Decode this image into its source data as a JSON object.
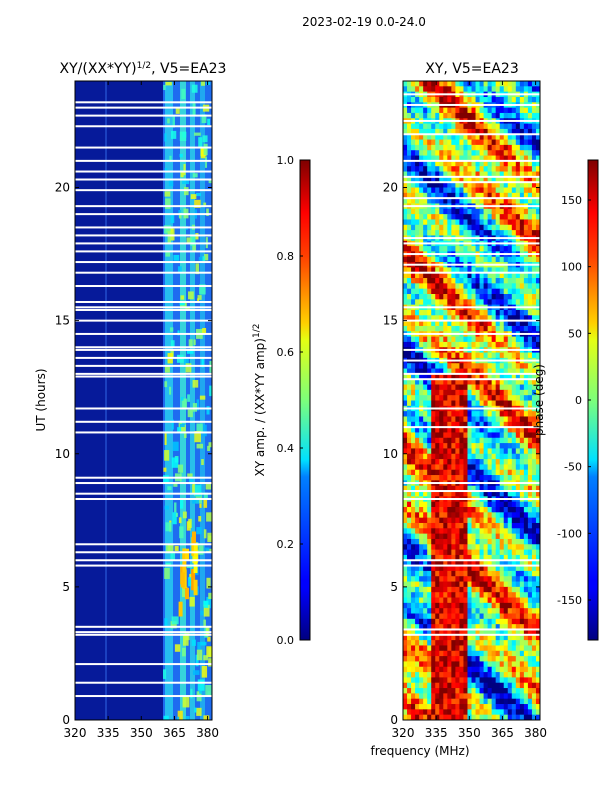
{
  "suptitle": "2023-02-19 0.0-24.0",
  "shared_xlabel": "frequency (MHz)",
  "chart_data": [
    {
      "type": "heatmap",
      "title_main": "XY/(XX*YY)",
      "title_exp": "1/2",
      "title_suffix": ", V5=EA23",
      "ylabel": "UT (hours)",
      "xlim": [
        320,
        382
      ],
      "ylim": [
        0,
        24
      ],
      "xticks": [
        320,
        335,
        350,
        365,
        380
      ],
      "yticks": [
        0,
        5,
        10,
        15,
        20
      ],
      "colorbar": {
        "label_main": "XY amp. / (XX*YY amp)",
        "label_exp": "1/2",
        "range": [
          0.0,
          1.0
        ],
        "ticks": [
          "0.0",
          "0.2",
          "0.4",
          "0.6",
          "0.8",
          "1.0"
        ]
      }
    },
    {
      "type": "heatmap",
      "title": "XY, V5=EA23",
      "xlabel": "frequency (MHz)",
      "xlim": [
        320,
        382
      ],
      "ylim": [
        0,
        24
      ],
      "xticks": [
        320,
        335,
        350,
        365,
        380
      ],
      "yticks": [
        0,
        5,
        10,
        15,
        20
      ],
      "colorbar": {
        "label": "phase (deg)",
        "range": [
          -180,
          180
        ],
        "ticks": [
          "-150",
          "-100",
          "-50",
          "0",
          "50",
          "100",
          "150"
        ]
      }
    }
  ],
  "flagged_ut_hours_left": [
    0.9,
    1.4,
    2.1,
    3.2,
    3.3,
    3.5,
    5.8,
    6.0,
    6.3,
    6.6,
    8.3,
    8.5,
    8.9,
    9.1,
    10.8,
    11.2,
    11.7,
    12.9,
    13.0,
    13.3,
    13.6,
    13.9,
    14.0,
    14.5,
    15.0,
    15.4,
    15.5,
    15.7,
    16.3,
    16.8,
    17.2,
    17.6,
    17.9,
    18.2,
    18.5,
    19.0,
    19.3,
    19.9,
    20.3,
    20.6,
    21.0,
    21.5,
    22.3,
    22.7,
    23.0,
    23.2
  ],
  "flagged_ut_hours_right": [
    3.2,
    3.4,
    5.8,
    6.0,
    8.3,
    8.6,
    8.9,
    11.0,
    11.7,
    12.8,
    13.0,
    13.5,
    13.9,
    14.5,
    15.0,
    15.5,
    16.8,
    17.1,
    17.5,
    17.9,
    18.1,
    19.3,
    19.6,
    20.2,
    20.4,
    21.0,
    22.0,
    22.5,
    23.1,
    23.5
  ],
  "colors": {
    "axis": "#000000",
    "background": "#ffffff",
    "flag": "#ffffff"
  }
}
